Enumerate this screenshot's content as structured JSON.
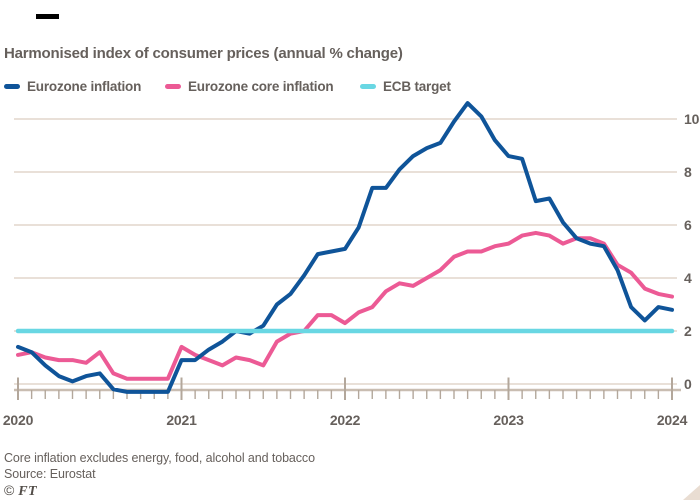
{
  "header": {
    "title": "Harmonised index of consumer prices (annual % change)"
  },
  "legend": [
    {
      "label": "Eurozone inflation",
      "color": "#0F5499"
    },
    {
      "label": "Eurozone core inflation",
      "color": "#EC5A95"
    },
    {
      "label": "ECB target",
      "color": "#69D7E3"
    }
  ],
  "chart_data": {
    "type": "line",
    "title": "Harmonised index of consumer prices (annual % change)",
    "x_unit": "month",
    "x_start": "2020-01",
    "x_end": "2024-01",
    "xticks": [
      "2020",
      "2021",
      "2022",
      "2023",
      "2024"
    ],
    "yticks": [
      0,
      2,
      4,
      6,
      8,
      10
    ],
    "ylim": [
      -0.75,
      10.75
    ],
    "grid": "horizontal",
    "legend_position": "top",
    "series": [
      {
        "name": "Eurozone core inflation",
        "color": "#EC5A95",
        "values": [
          1.1,
          1.2,
          1.0,
          0.9,
          0.9,
          0.8,
          1.2,
          0.4,
          0.2,
          0.2,
          0.2,
          0.2,
          1.4,
          1.1,
          0.9,
          0.7,
          1.0,
          0.9,
          0.7,
          1.6,
          1.9,
          2.0,
          2.6,
          2.6,
          2.3,
          2.7,
          2.9,
          3.5,
          3.8,
          3.7,
          4.0,
          4.3,
          4.8,
          5.0,
          5.0,
          5.2,
          5.3,
          5.6,
          5.7,
          5.6,
          5.3,
          5.5,
          5.5,
          5.3,
          4.5,
          4.2,
          3.6,
          3.4,
          3.3
        ]
      },
      {
        "name": "Eurozone inflation",
        "color": "#0F5499",
        "values": [
          1.4,
          1.2,
          0.7,
          0.3,
          0.1,
          0.3,
          0.4,
          -0.2,
          -0.3,
          -0.3,
          -0.3,
          -0.3,
          0.9,
          0.9,
          1.3,
          1.6,
          2.0,
          1.9,
          2.2,
          3.0,
          3.4,
          4.1,
          4.9,
          5.0,
          5.1,
          5.9,
          7.4,
          7.4,
          8.1,
          8.6,
          8.9,
          9.1,
          9.9,
          10.6,
          10.1,
          9.2,
          8.6,
          8.5,
          6.9,
          7.0,
          6.1,
          5.5,
          5.3,
          5.2,
          4.3,
          2.9,
          2.4,
          2.9,
          2.8
        ]
      },
      {
        "name": "ECB target",
        "color": "#69D7E3",
        "constant": 2
      }
    ]
  },
  "footer": {
    "note": "Core inflation excludes energy, food, alcohol and tobacco",
    "source": "Source: Eurostat",
    "credit_symbol": "©",
    "credit_name": "FT"
  },
  "colors": {
    "background": "#FFFFFF",
    "text": "#66605C",
    "gridline": "#E2D6CB",
    "baseline": "#C9BDB1",
    "tick": "#B3A79B",
    "top_rule": "#000000",
    "corner": "#E9DDD2"
  }
}
